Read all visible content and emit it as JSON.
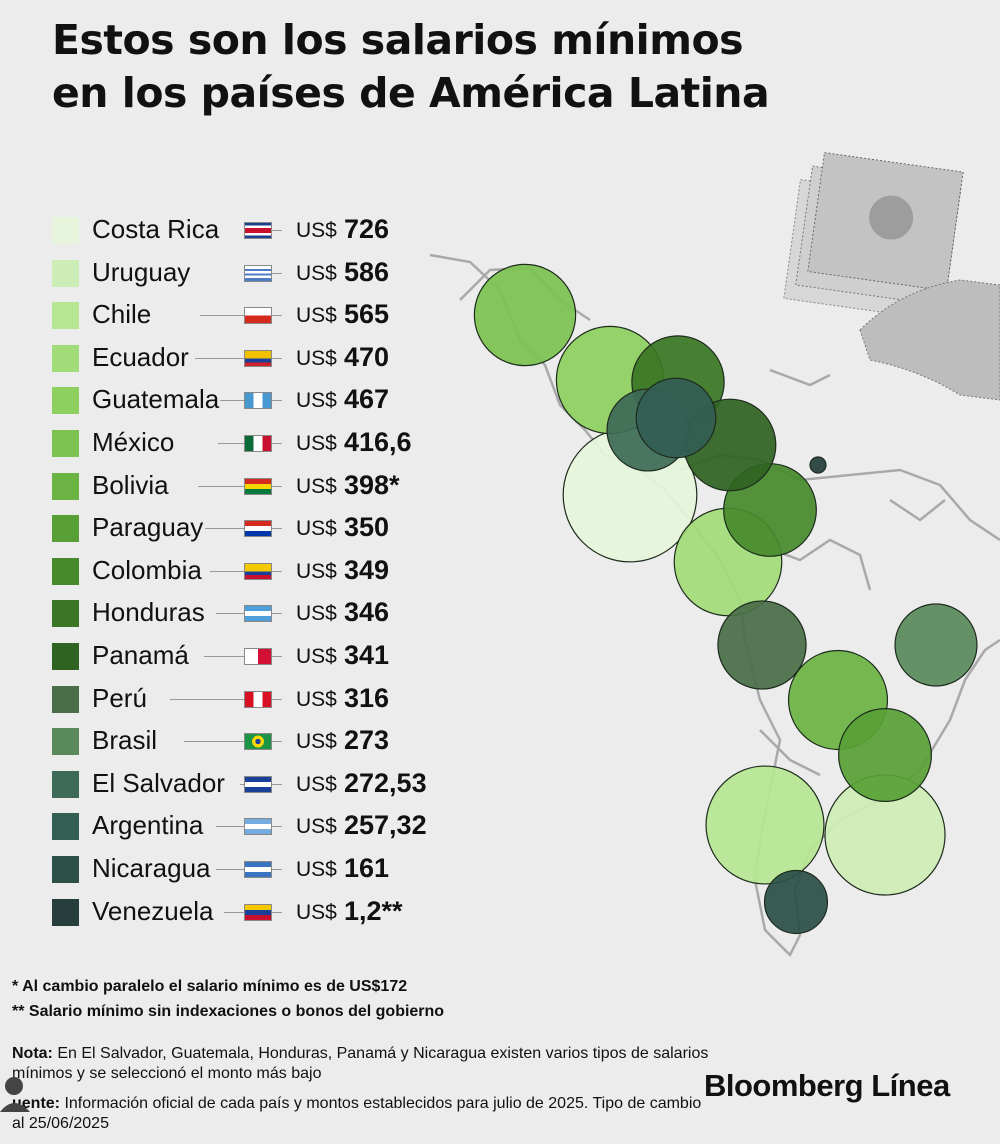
{
  "title": {
    "line1": "Estos son los salarios mínimos",
    "line2": "en los países de América Latina"
  },
  "currency_label": "US$",
  "chart_data": {
    "type": "bubble-map",
    "title": "Estos son los salarios mínimos en los países de América Latina",
    "unit": "US$",
    "rows": [
      {
        "country": "Costa Rica",
        "value": 726,
        "label": "726",
        "color": "#e6f5dc",
        "flag": "costa-rica-flag"
      },
      {
        "country": "Uruguay",
        "value": 586,
        "label": "586",
        "color": "#cdedb6",
        "flag": "uruguay-flag"
      },
      {
        "country": "Chile",
        "value": 565,
        "label": "565",
        "color": "#b7e693",
        "flag": "chile-flag"
      },
      {
        "country": "Ecuador",
        "value": 470,
        "label": "470",
        "color": "#a2dc78",
        "flag": "ecuador-flag"
      },
      {
        "country": "Guatemala",
        "value": 467,
        "label": "467",
        "color": "#8ed060",
        "flag": "guatemala-flag"
      },
      {
        "country": "México",
        "value": 416.6,
        "label": "416,6",
        "color": "#7cc351",
        "flag": "mexico-flag"
      },
      {
        "country": "Bolivia",
        "value": 398,
        "label": "398*",
        "color": "#6bb443",
        "flag": "bolivia-flag"
      },
      {
        "country": "Paraguay",
        "value": 350,
        "label": "350",
        "color": "#58a036",
        "flag": "paraguay-flag"
      },
      {
        "country": "Colombia",
        "value": 349,
        "label": "349",
        "color": "#478a2c",
        "flag": "colombia-flag"
      },
      {
        "country": "Honduras",
        "value": 346,
        "label": "346",
        "color": "#3a7625",
        "flag": "honduras-flag"
      },
      {
        "country": "Panamá",
        "value": 341,
        "label": "341",
        "color": "#2f6321",
        "flag": "panama-flag"
      },
      {
        "country": "Perú",
        "value": 316,
        "label": "316",
        "color": "#4a6e48",
        "flag": "peru-flag"
      },
      {
        "country": "Brasil",
        "value": 273,
        "label": "273",
        "color": "#5a8a5c",
        "flag": "brasil-flag"
      },
      {
        "country": "El Salvador",
        "value": 272.53,
        "label": "272,53",
        "color": "#3d6b57",
        "flag": "el-salvador-flag"
      },
      {
        "country": "Argentina",
        "value": 257.32,
        "label": "257,32",
        "color": "#335e54",
        "flag": "argentina-flag"
      },
      {
        "country": "Nicaragua",
        "value": 161,
        "label": "161",
        "color": "#2c5048",
        "flag": "nicaragua-flag"
      },
      {
        "country": "Venezuela",
        "value": 1.2,
        "label": "1,2**",
        "color": "#263f3c",
        "flag": "venezuela-flag"
      }
    ]
  },
  "footnotes": {
    "f1": "* Al cambio paralelo el salario mínimo es de US$172",
    "f2": "** Salario mínimo sin indexaciones o bonos del gobierno"
  },
  "note": {
    "label": "Nota:",
    "text": " En El Salvador, Guatemala, Honduras, Panamá y Nicaragua existen varios tipos de salarios mínimos y se seleccionó el monto más bajo"
  },
  "source": {
    "label": "uente:",
    "text": " Información oficial de cada país y montos establecidos para julio de 2025. Tipo de cambio al 25/06/2025"
  },
  "brand": "Bloomberg Línea"
}
